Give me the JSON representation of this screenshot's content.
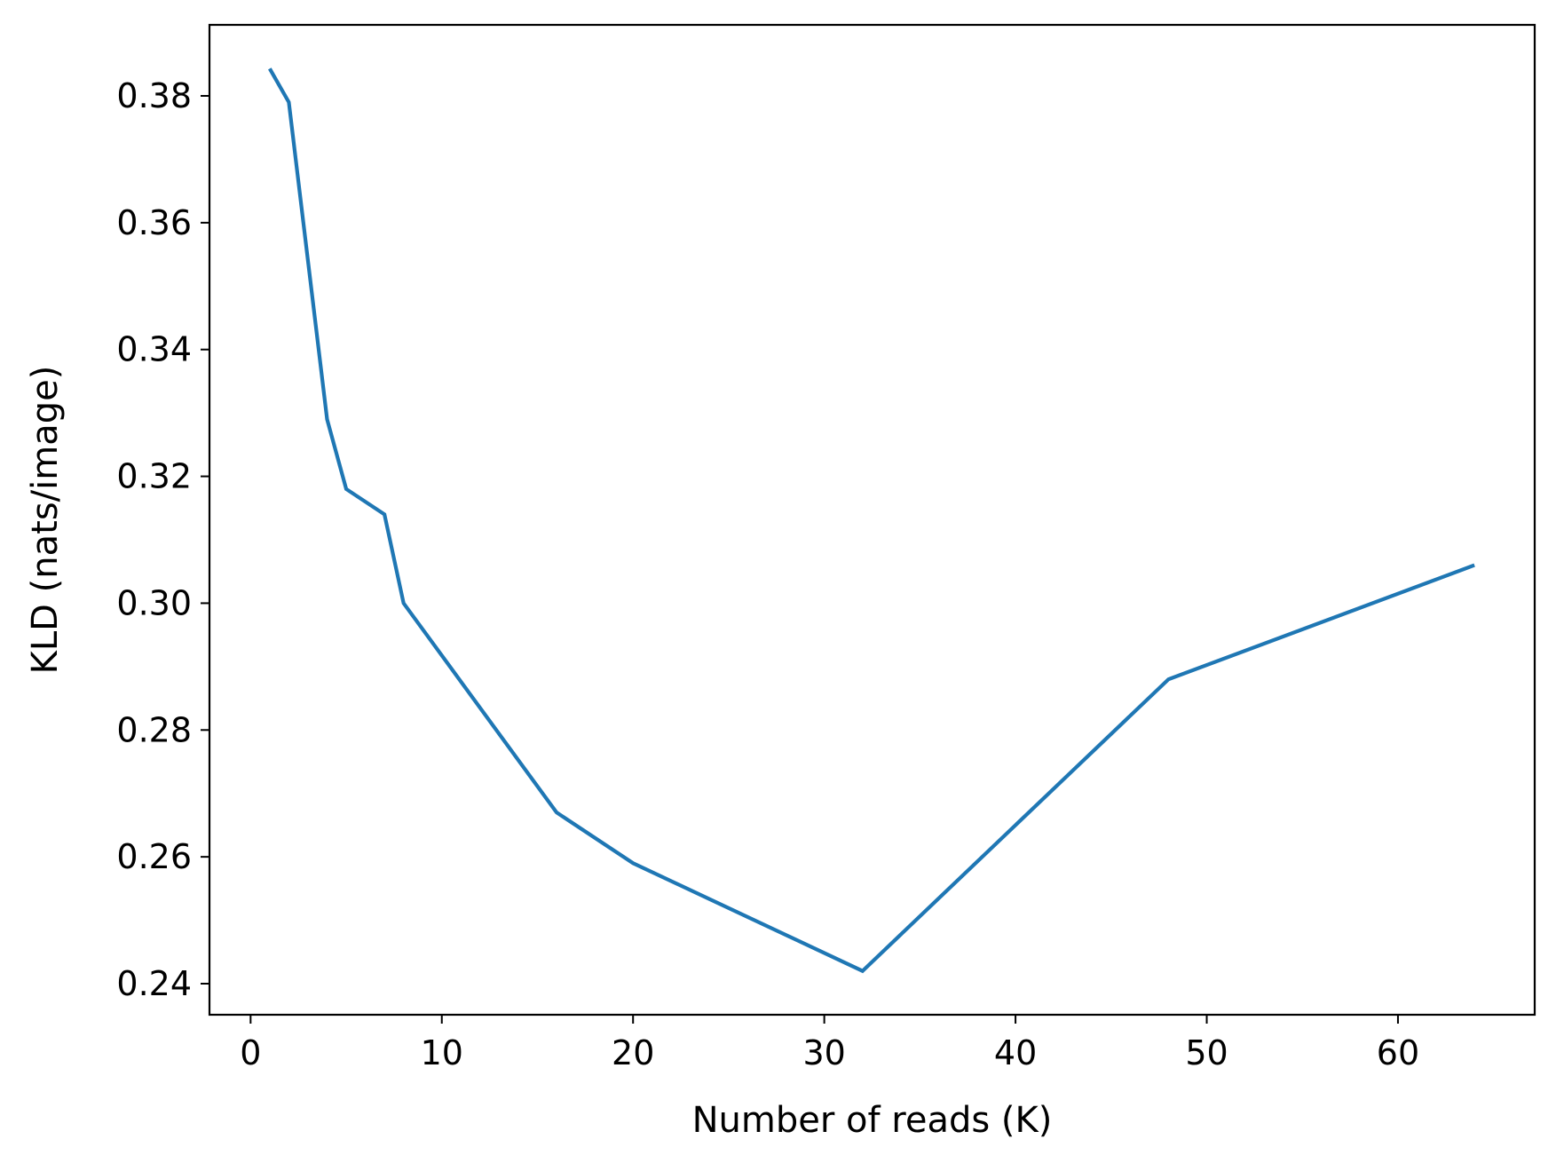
{
  "chart_data": {
    "type": "line",
    "title": "",
    "xlabel": "Number of reads (K)",
    "ylabel": "KLD (nats/image)",
    "xlim": [
      -2.15,
      67.15
    ],
    "ylim": [
      0.2351,
      0.3912
    ],
    "xticks": [
      0,
      10,
      20,
      30,
      40,
      50,
      60
    ],
    "yticks": [
      0.24,
      0.26,
      0.28,
      0.3,
      0.32,
      0.34,
      0.36,
      0.38
    ],
    "xtick_labels": [
      "0",
      "10",
      "20",
      "30",
      "40",
      "50",
      "60"
    ],
    "ytick_labels": [
      "0.24",
      "0.26",
      "0.28",
      "0.30",
      "0.32",
      "0.34",
      "0.36",
      "0.38"
    ],
    "grid": false,
    "series": [
      {
        "color": "#1f77b4",
        "x": [
          1,
          2,
          4,
          5,
          7,
          8,
          16,
          20,
          32,
          48,
          64
        ],
        "y": [
          0.3843,
          0.379,
          0.329,
          0.318,
          0.314,
          0.3,
          0.267,
          0.259,
          0.242,
          0.288,
          0.306
        ]
      }
    ]
  }
}
